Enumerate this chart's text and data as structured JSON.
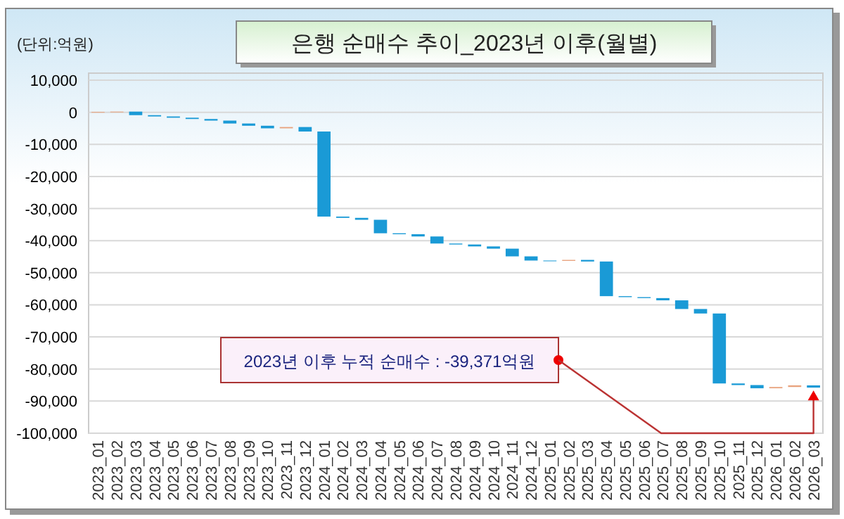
{
  "chart_data": {
    "type": "bar",
    "title": "은행 순매수 추이_2023년 이후(월별)",
    "ylabel": "(단위:억원)",
    "categories": [
      "2023_01",
      "2023_02",
      "2023_03",
      "2023_04",
      "2023_05",
      "2023_06",
      "2023_07",
      "2023_08",
      "2023_09",
      "2023_10",
      "2023_11",
      "2023_12",
      "2024_01",
      "2024_02",
      "2024_03",
      "2024_04",
      "2024_05",
      "2024_06",
      "2024_07",
      "2024_08",
      "2024_09",
      "2024_10",
      "2024_11",
      "2024_12",
      "2025_01",
      "2025_02",
      "2025_03",
      "2025_04",
      "2025_05",
      "2025_06",
      "2025_07",
      "2025_08",
      "2025_09",
      "2025_10",
      "2025_11",
      "2025_12",
      "2026_01",
      "2026_02",
      "2026_03"
    ],
    "base": [
      0,
      100,
      200,
      -900,
      -1300,
      -1700,
      -2100,
      -2600,
      -3500,
      -4200,
      -5000,
      -4600,
      -6000,
      -32500,
      -32900,
      -33500,
      -37700,
      -38000,
      -38700,
      -40900,
      -41200,
      -41800,
      -42500,
      -44900,
      -46200,
      -46300,
      -46000,
      -46500,
      -57300,
      -57600,
      -57900,
      -58600,
      -61300,
      -62700,
      -84500,
      -85000,
      -86000,
      -85600,
      -85100
    ],
    "values": [
      100,
      100,
      -1100,
      -400,
      -400,
      -400,
      -500,
      -900,
      -700,
      -800,
      400,
      -1400,
      -26500,
      -400,
      -600,
      -4200,
      -300,
      -700,
      -2200,
      -300,
      -600,
      -700,
      -2400,
      -1300,
      -100,
      300,
      -500,
      -10800,
      -300,
      -300,
      -700,
      -2700,
      -1400,
      -21800,
      -500,
      -1000,
      400,
      500,
      -700
    ],
    "colors": [
      "#e8a27c",
      "#e8a27c",
      "#1a9ad6",
      "#1a9ad6",
      "#1a9ad6",
      "#1a9ad6",
      "#1a9ad6",
      "#1a9ad6",
      "#1a9ad6",
      "#1a9ad6",
      "#e8a27c",
      "#1a9ad6",
      "#1a9ad6",
      "#1a9ad6",
      "#1a9ad6",
      "#1a9ad6",
      "#1a9ad6",
      "#1a9ad6",
      "#1a9ad6",
      "#1a9ad6",
      "#1a9ad6",
      "#1a9ad6",
      "#1a9ad6",
      "#1a9ad6",
      "#1a9ad6",
      "#e8a27c",
      "#1a9ad6",
      "#1a9ad6",
      "#1a9ad6",
      "#1a9ad6",
      "#1a9ad6",
      "#1a9ad6",
      "#1a9ad6",
      "#1a9ad6",
      "#1a9ad6",
      "#1a9ad6",
      "#e8a27c",
      "#e8a27c",
      "#1a9ad6"
    ],
    "ylim": [
      -100000,
      10000
    ],
    "yticks": [
      {
        "value": 10000,
        "label": "10,000"
      },
      0,
      {
        "value": -10000,
        "label": "-10,000"
      },
      {
        "value": -20000,
        "label": "-20,000"
      },
      {
        "value": -30000,
        "label": "-30,000"
      },
      {
        "value": -40000,
        "label": "-40,000"
      },
      {
        "value": -50000,
        "label": "-50,000"
      },
      {
        "value": -60000,
        "label": "-60,000"
      },
      {
        "value": -70000,
        "label": "-70,000"
      },
      {
        "value": -80000,
        "label": "-80,000"
      },
      {
        "value": -90000,
        "label": "-90,000"
      },
      {
        "value": -100000,
        "label": "-100,000"
      }
    ],
    "grid": "y",
    "annotations": [
      "2023년 이후 누적 순매수 : -39,371억원"
    ]
  }
}
